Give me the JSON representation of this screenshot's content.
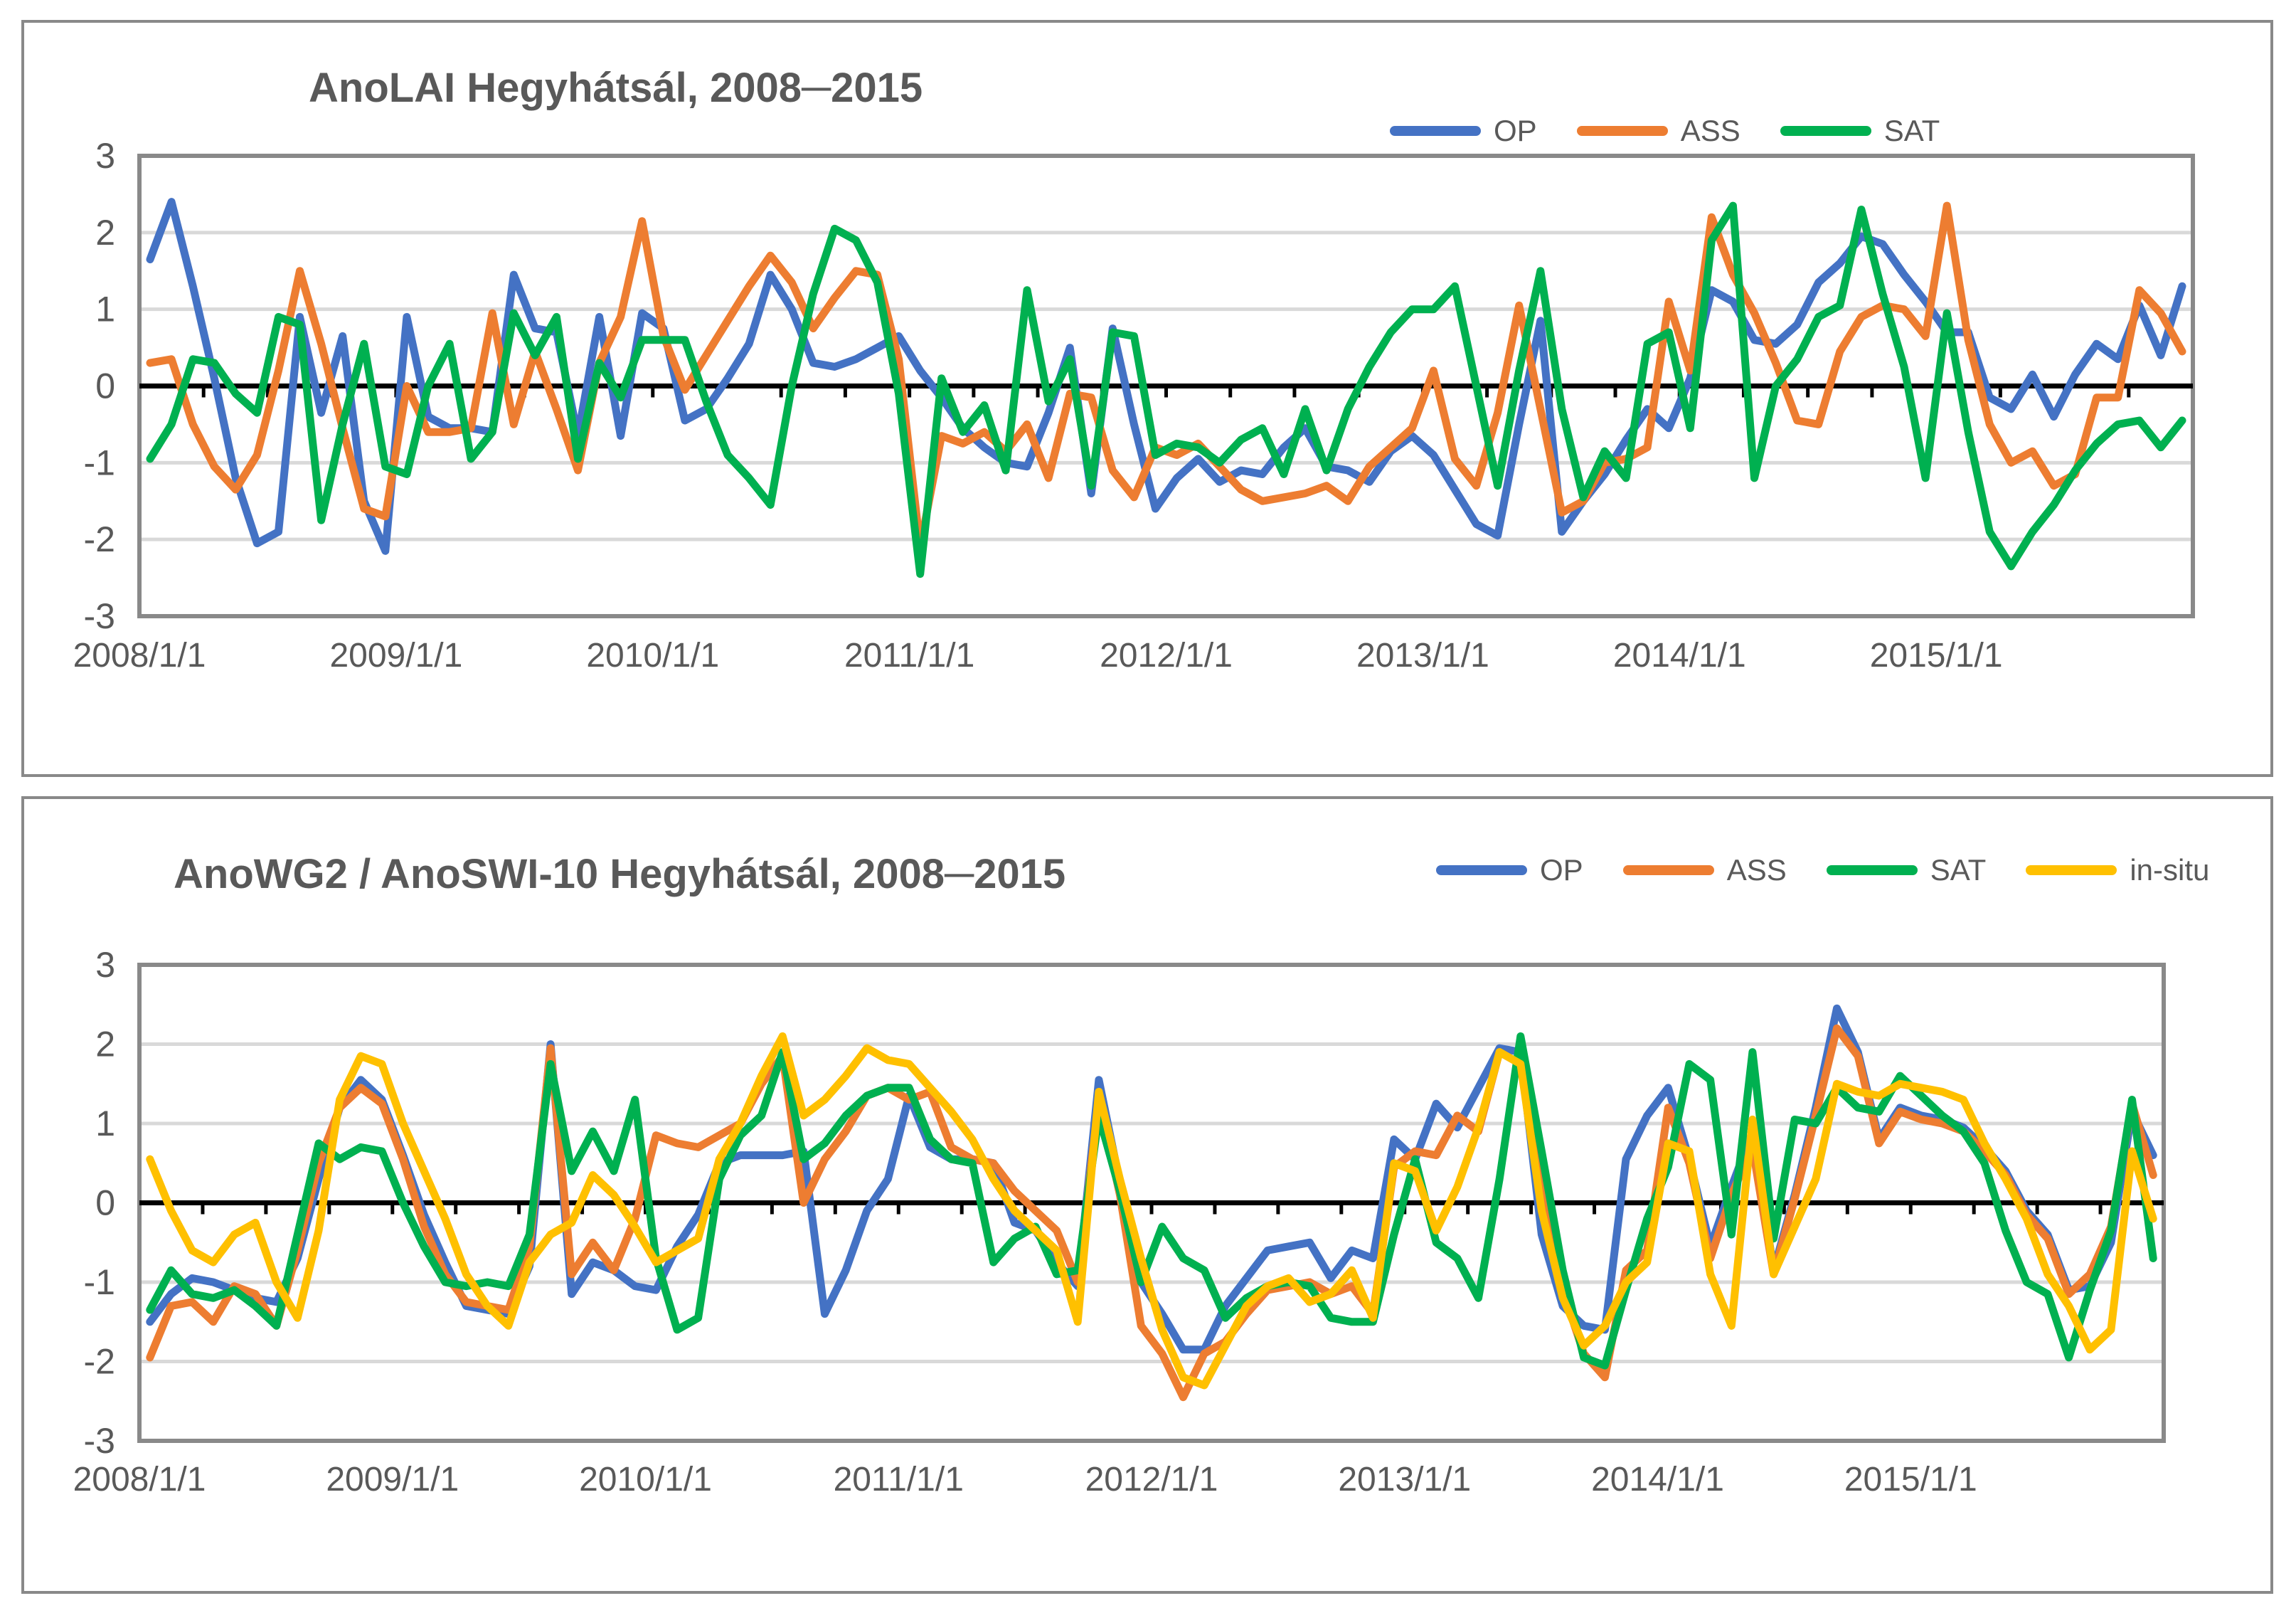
{
  "page": {
    "background": "#ffffff"
  },
  "styles": {
    "series_colors": {
      "OP": "#4472C4",
      "ASS": "#ED7D31",
      "SAT": "#00B050",
      "in-situ": "#FFC000"
    },
    "axis_border_color": "#898989",
    "grid_color": "#D9D9D9",
    "zero_axis_color": "#000000",
    "text_color": "#595959"
  },
  "chart_data": [
    {
      "type": "line",
      "title": "AnoLAI Hegyhátsál, 2008─2015",
      "x_tick_labels": [
        "2008/1/1",
        "2009/1/1",
        "2010/1/1",
        "2011/1/1",
        "2012/1/1",
        "2013/1/1",
        "2014/1/1",
        "2015/1/1"
      ],
      "x_range_months": 96,
      "ylim": [
        -3,
        3
      ],
      "yticks": [
        3,
        2,
        1,
        0,
        -1,
        -2,
        -3
      ],
      "grid": true,
      "legend_position": "top-right",
      "legend": [
        "OP",
        "ASS",
        "SAT"
      ],
      "series": [
        {
          "name": "OP",
          "color": "#4472C4",
          "values": [
            1.65,
            2.4,
            1.3,
            0.1,
            -1.2,
            -2.05,
            -1.9,
            0.9,
            -0.35,
            0.65,
            -1.5,
            -2.15,
            0.9,
            -0.4,
            -0.55,
            -0.55,
            -0.6,
            1.45,
            0.75,
            0.7,
            -0.65,
            0.9,
            -0.65,
            0.95,
            0.75,
            -0.45,
            -0.3,
            0.1,
            0.55,
            1.45,
            1.0,
            0.3,
            0.25,
            0.35,
            0.5,
            0.65,
            0.2,
            -0.15,
            -0.55,
            -0.8,
            -1.0,
            -1.05,
            -0.35,
            0.5,
            -1.4,
            0.75,
            -0.5,
            -1.6,
            -1.2,
            -0.95,
            -1.25,
            -1.1,
            -1.15,
            -0.8,
            -0.55,
            -1.05,
            -1.1,
            -1.25,
            -0.85,
            -0.65,
            -0.9,
            -1.35,
            -1.8,
            -1.95,
            -0.5,
            0.85,
            -1.9,
            -1.5,
            -1.15,
            -0.7,
            -0.3,
            -0.55,
            0.1,
            1.25,
            1.1,
            0.6,
            0.55,
            0.8,
            1.35,
            1.6,
            1.95,
            1.85,
            1.45,
            1.1,
            0.7,
            0.7,
            -0.15,
            -0.3,
            0.15,
            -0.4,
            0.15,
            0.55,
            0.35,
            1.05,
            0.4,
            1.3
          ]
        },
        {
          "name": "ASS",
          "color": "#ED7D31",
          "values": [
            0.3,
            0.35,
            -0.5,
            -1.05,
            -1.35,
            -0.9,
            0.2,
            1.5,
            0.55,
            -0.55,
            -1.6,
            -1.7,
            0.0,
            -0.6,
            -0.6,
            -0.55,
            0.95,
            -0.5,
            0.45,
            -0.3,
            -1.1,
            0.3,
            0.9,
            2.15,
            0.65,
            -0.05,
            0.4,
            0.85,
            1.3,
            1.7,
            1.35,
            0.75,
            1.15,
            1.5,
            1.45,
            0.35,
            -2.1,
            -0.65,
            -0.75,
            -0.6,
            -0.85,
            -0.5,
            -1.2,
            -0.1,
            -0.15,
            -1.1,
            -1.45,
            -0.8,
            -0.9,
            -0.75,
            -1.05,
            -1.35,
            -1.5,
            -1.45,
            -1.4,
            -1.3,
            -1.5,
            -1.05,
            -0.8,
            -0.55,
            0.2,
            -0.95,
            -1.3,
            -0.35,
            1.05,
            -0.3,
            -1.65,
            -1.5,
            -1.0,
            -0.95,
            -0.8,
            1.1,
            0.2,
            2.2,
            1.45,
            0.95,
            0.3,
            -0.45,
            -0.5,
            0.45,
            0.9,
            1.05,
            1.0,
            0.65,
            2.35,
            0.6,
            -0.5,
            -1.0,
            -0.85,
            -1.3,
            -1.15,
            -0.15,
            -0.15,
            1.25,
            0.95,
            0.45
          ]
        },
        {
          "name": "SAT",
          "color": "#00B050",
          "values": [
            -0.95,
            -0.5,
            0.35,
            0.3,
            -0.1,
            -0.35,
            0.9,
            0.8,
            -1.75,
            -0.5,
            0.55,
            -1.05,
            -1.15,
            0.0,
            0.55,
            -0.95,
            -0.6,
            0.95,
            0.4,
            0.9,
            -0.95,
            0.3,
            -0.15,
            0.6,
            0.6,
            0.6,
            -0.2,
            -0.9,
            -1.2,
            -1.55,
            0.0,
            1.2,
            2.05,
            1.9,
            1.35,
            -0.1,
            -2.45,
            0.1,
            -0.6,
            -0.25,
            -1.1,
            1.25,
            -0.2,
            0.35,
            -1.3,
            0.7,
            0.65,
            -0.9,
            -0.75,
            -0.8,
            -1.0,
            -0.7,
            -0.55,
            -1.15,
            -0.3,
            -1.1,
            -0.3,
            0.25,
            0.7,
            1.0,
            1.0,
            1.3,
            0.0,
            -1.3,
            0.2,
            1.5,
            -0.3,
            -1.45,
            -0.85,
            -1.2,
            0.55,
            0.7,
            -0.55,
            1.9,
            2.35,
            -1.2,
            0.0,
            0.35,
            0.9,
            1.05,
            2.3,
            1.2,
            0.25,
            -1.2,
            0.95,
            -0.6,
            -1.9,
            -2.35,
            -1.9,
            -1.55,
            -1.1,
            -0.75,
            -0.5,
            -0.45,
            -0.8,
            -0.45
          ]
        }
      ]
    },
    {
      "type": "line",
      "title": "AnoWG2 / AnoSWI-10 Hegyhátsál, 2008─2015",
      "x_tick_labels": [
        "2008/1/1",
        "2009/1/1",
        "2010/1/1",
        "2011/1/1",
        "2012/1/1",
        "2013/1/1",
        "2014/1/1",
        "2015/1/1"
      ],
      "x_range_months": 96,
      "ylim": [
        -3,
        3
      ],
      "yticks": [
        3,
        2,
        1,
        0,
        -1,
        -2,
        -3
      ],
      "grid": true,
      "legend_position": "top-right",
      "legend": [
        "OP",
        "ASS",
        "SAT",
        "in-situ"
      ],
      "series": [
        {
          "name": "OP",
          "color": "#4472C4",
          "values": [
            -1.5,
            -1.15,
            -0.95,
            -1.0,
            -1.1,
            -1.2,
            -1.25,
            -0.7,
            0.3,
            1.2,
            1.55,
            1.3,
            0.6,
            -0.15,
            -0.75,
            -1.3,
            -1.35,
            -1.4,
            -0.8,
            2.0,
            -1.15,
            -0.75,
            -0.85,
            -1.05,
            -1.1,
            -0.55,
            -0.15,
            0.5,
            0.6,
            0.6,
            0.6,
            0.65,
            -1.4,
            -0.85,
            -0.1,
            0.3,
            1.35,
            0.7,
            0.55,
            0.55,
            0.5,
            -0.25,
            -0.35,
            -0.75,
            -1.05,
            1.55,
            0.25,
            -1.0,
            -1.4,
            -1.85,
            -1.85,
            -1.3,
            -0.95,
            -0.6,
            -0.55,
            -0.5,
            -0.95,
            -0.6,
            -0.7,
            0.8,
            0.55,
            1.25,
            0.95,
            1.45,
            1.95,
            1.9,
            -0.4,
            -1.3,
            -1.55,
            -1.6,
            0.55,
            1.1,
            1.45,
            0.55,
            -0.55,
            0.2,
            0.9,
            -0.85,
            0.1,
            1.2,
            2.45,
            1.9,
            0.8,
            1.2,
            1.1,
            1.05,
            0.95,
            0.7,
            0.4,
            -0.1,
            -0.4,
            -1.1,
            -1.05,
            -0.5,
            1.15,
            0.6
          ]
        },
        {
          "name": "ASS",
          "color": "#ED7D31",
          "values": [
            -1.95,
            -1.3,
            -1.25,
            -1.5,
            -1.05,
            -1.15,
            -1.55,
            -0.6,
            0.5,
            1.2,
            1.45,
            1.25,
            0.55,
            -0.3,
            -0.9,
            -1.25,
            -1.3,
            -1.35,
            -0.55,
            1.95,
            -0.9,
            -0.5,
            -0.85,
            -0.2,
            0.85,
            0.75,
            0.7,
            0.85,
            1.0,
            1.5,
            1.85,
            0.0,
            0.55,
            0.9,
            1.35,
            1.45,
            1.3,
            1.4,
            0.7,
            0.55,
            0.5,
            0.15,
            -0.1,
            -0.35,
            -1.0,
            1.3,
            0.1,
            -1.55,
            -1.9,
            -2.45,
            -1.9,
            -1.75,
            -1.4,
            -1.1,
            -1.05,
            -1.0,
            -1.15,
            -1.05,
            -1.4,
            0.45,
            0.65,
            0.6,
            1.1,
            0.9,
            1.9,
            1.75,
            0.1,
            -1.1,
            -1.9,
            -2.2,
            -0.85,
            -0.6,
            1.2,
            0.5,
            -0.7,
            0.1,
            0.7,
            -0.9,
            0.05,
            1.1,
            2.2,
            1.85,
            0.75,
            1.15,
            1.05,
            1.0,
            0.9,
            0.65,
            0.35,
            -0.15,
            -0.45,
            -1.15,
            -0.9,
            -0.3,
            1.25,
            0.35
          ]
        },
        {
          "name": "SAT",
          "color": "#00B050",
          "values": [
            -1.35,
            -0.85,
            -1.15,
            -1.2,
            -1.1,
            -1.3,
            -1.55,
            -0.4,
            0.75,
            0.55,
            0.7,
            0.65,
            0.0,
            -0.55,
            -1.0,
            -1.05,
            -1.0,
            -1.05,
            -0.4,
            1.75,
            0.4,
            0.9,
            0.4,
            1.3,
            -0.7,
            -1.6,
            -1.45,
            0.3,
            0.85,
            1.1,
            1.9,
            0.55,
            0.75,
            1.1,
            1.35,
            1.45,
            1.45,
            0.8,
            0.55,
            0.5,
            -0.75,
            -0.45,
            -0.3,
            -0.9,
            -0.85,
            1.1,
            0.15,
            -1.0,
            -0.3,
            -0.7,
            -0.85,
            -1.45,
            -1.2,
            -1.05,
            -1.0,
            -1.05,
            -1.45,
            -1.5,
            -1.5,
            -0.4,
            0.55,
            -0.5,
            -0.7,
            -1.2,
            0.3,
            2.1,
            0.65,
            -0.85,
            -1.95,
            -2.05,
            -1.1,
            -0.2,
            0.45,
            1.75,
            1.55,
            -0.4,
            1.9,
            -0.45,
            1.05,
            1.0,
            1.45,
            1.2,
            1.15,
            1.6,
            1.35,
            1.1,
            0.9,
            0.5,
            -0.35,
            -1.0,
            -1.15,
            -1.95,
            -1.1,
            -0.35,
            1.3,
            -0.7
          ]
        },
        {
          "name": "in-situ",
          "color": "#FFC000",
          "values": [
            0.55,
            -0.1,
            -0.6,
            -0.75,
            -0.4,
            -0.25,
            -1.0,
            -1.45,
            -0.35,
            1.3,
            1.85,
            1.75,
            1.0,
            0.4,
            -0.2,
            -0.9,
            -1.3,
            -1.55,
            -0.75,
            -0.4,
            -0.25,
            0.35,
            0.1,
            -0.3,
            -0.75,
            -0.6,
            -0.45,
            0.55,
            1.0,
            1.6,
            2.1,
            1.1,
            1.3,
            1.6,
            1.95,
            1.8,
            1.75,
            1.45,
            1.15,
            0.8,
            0.3,
            -0.1,
            -0.35,
            -0.6,
            -1.5,
            1.4,
            0.3,
            -0.7,
            -1.6,
            -2.2,
            -2.3,
            -1.8,
            -1.3,
            -1.05,
            -0.95,
            -1.25,
            -1.15,
            -0.85,
            -1.45,
            0.5,
            0.4,
            -0.35,
            0.2,
            0.95,
            1.9,
            1.75,
            -0.1,
            -1.2,
            -1.8,
            -1.55,
            -1.0,
            -0.75,
            0.75,
            0.65,
            -0.9,
            -1.55,
            1.05,
            -0.9,
            -0.3,
            0.3,
            1.5,
            1.4,
            1.35,
            1.5,
            1.45,
            1.4,
            1.3,
            0.75,
            0.3,
            -0.2,
            -0.9,
            -1.3,
            -1.85,
            -1.6,
            0.65,
            -0.2
          ]
        }
      ]
    }
  ]
}
